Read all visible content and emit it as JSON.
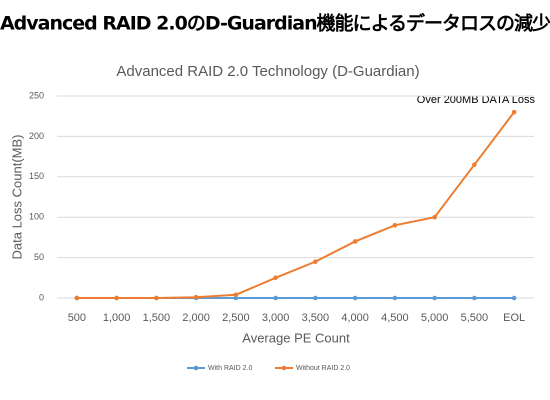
{
  "header": {
    "title": "Advanced RAID 2.0のD-Guardian機能によるデータロスの減少"
  },
  "chart_data": {
    "type": "line",
    "title": "Advanced RAID 2.0 Technology (D-Guardian)",
    "annotation": "Over 200MB DATA Loss",
    "x_label": "Average PE Count",
    "y_label": "Data Loss Count(MB)",
    "categories": [
      "500",
      "1,000",
      "1,500",
      "2,000",
      "2,500",
      "3,000",
      "3,500",
      "4,000",
      "4,500",
      "5,000",
      "5,500",
      "EOL"
    ],
    "series": [
      {
        "name": "With RAID 2.0",
        "color": "#5b9bd5",
        "values": [
          0,
          0,
          0,
          0,
          0,
          0,
          0,
          0,
          0,
          0,
          0,
          0
        ]
      },
      {
        "name": "Without RAID 2.0",
        "color": "#ed7d31",
        "values": [
          0,
          0,
          0,
          1,
          4,
          25,
          45,
          70,
          90,
          100,
          165,
          230
        ]
      }
    ],
    "ylim": [
      0,
      250
    ],
    "yticks": [
      0,
      50,
      100,
      150,
      200,
      250
    ],
    "grid": true
  }
}
